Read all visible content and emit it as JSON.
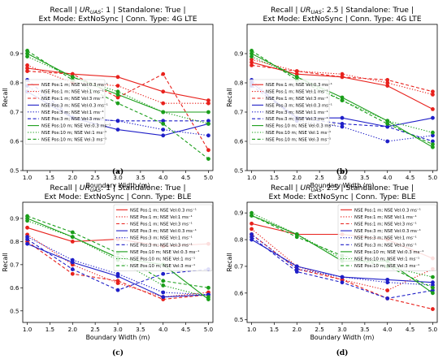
{
  "chart_data": [
    {
      "type": "line",
      "panel_label": "(a)",
      "title_line1_pre": "Recall | ",
      "title_line1_sym": "UR",
      "title_line1_sub": "UAS",
      "title_line1_post": ": 1 | Standalone: True |",
      "title_line2": "Ext Mode: ExtNoSync | Conn. Type: 4G LTE",
      "xlabel": "Boundary  Width (m)",
      "ylabel": "Recall",
      "xlim": [
        0.9,
        5.1
      ],
      "ylim": [
        0.5,
        1.0
      ],
      "x_ticks": [
        "1.0",
        "1.5",
        "2.0",
        "2.5",
        "3.0",
        "3.5",
        "4.0",
        "4.5",
        "5.0"
      ],
      "y_ticks": [
        "0.5",
        "0.6",
        "0.7",
        "0.8",
        "0.9"
      ],
      "legend_position": "center-left",
      "x": [
        1,
        2,
        3,
        4,
        5
      ],
      "series": [
        {
          "name": "NSE Pos:1 m; NSE Vel:0.3 ms⁻¹",
          "color": "#e8211c",
          "dash": "solid",
          "values": [
            0.85,
            0.83,
            0.82,
            0.77,
            0.74
          ]
        },
        {
          "name": "NSE Pos:1 m; NSE Vel:1 ms⁻¹",
          "color": "#e8211c",
          "dash": "dotted",
          "values": [
            0.86,
            0.8,
            0.79,
            0.73,
            0.73
          ]
        },
        {
          "name": "NSE Pos:1 m; NSE Vel:3 ms⁻¹",
          "color": "#e8211c",
          "dash": "dashed",
          "values": [
            0.84,
            0.83,
            0.75,
            0.83,
            0.57
          ]
        },
        {
          "name": "NSE Pos:3 m; NSE Vel:0.3 ms⁻¹",
          "color": "#1f1fc8",
          "dash": "solid",
          "values": [
            0.77,
            0.68,
            0.64,
            0.62,
            0.66
          ]
        },
        {
          "name": "NSE Pos:3 m; NSE Vel:1 ms⁻¹",
          "color": "#1f1fc8",
          "dash": "dotted",
          "values": [
            0.79,
            0.68,
            0.67,
            0.64,
            0.62
          ]
        },
        {
          "name": "NSE Pos:3 m; NSE Vel:3 ms⁻¹",
          "color": "#1f1fc8",
          "dash": "dashed",
          "values": [
            0.81,
            0.68,
            0.67,
            0.67,
            0.67
          ]
        },
        {
          "name": "NSE Pos:10 m; NSE Vel:0.3 ms⁻¹",
          "color": "#1a9e1a",
          "dash": "solid",
          "values": [
            0.9,
            0.82,
            0.76,
            0.7,
            0.7
          ]
        },
        {
          "name": "NSE Pos:10 m; NSE Vel:1 ms⁻¹",
          "color": "#1a9e1a",
          "dash": "dotted",
          "values": [
            0.89,
            0.82,
            0.77,
            0.7,
            0.66
          ]
        },
        {
          "name": "NSE Pos:10 m; NSE Vel:3 ms⁻¹",
          "color": "#1a9e1a",
          "dash": "dashed",
          "values": [
            0.91,
            0.81,
            0.73,
            0.66,
            0.54
          ]
        }
      ]
    },
    {
      "type": "line",
      "panel_label": "(b)",
      "title_line1_pre": "Recall | ",
      "title_line1_sym": "UR",
      "title_line1_sub": "UAS",
      "title_line1_post": ": 2.5 | Standalone: True |",
      "title_line2": "Ext Mode: ExtNoSync | Conn. Type: 4G LTE",
      "xlabel": "Boundary  Width (m)",
      "ylabel": "Recall",
      "xlim": [
        0.9,
        5.1
      ],
      "ylim": [
        0.5,
        1.0
      ],
      "x_ticks": [
        "1.0",
        "1.5",
        "2.0",
        "2.5",
        "3.0",
        "3.5",
        "4.0",
        "4.5",
        "5.0"
      ],
      "y_ticks": [
        "0.5",
        "0.6",
        "0.7",
        "0.8",
        "0.9"
      ],
      "legend_position": "center-left",
      "x": [
        1,
        2,
        3,
        4,
        5
      ],
      "series": [
        {
          "name": "NSE Pos:1 m; NSE Vel:0.3 ms⁻¹",
          "color": "#e8211c",
          "dash": "solid",
          "values": [
            0.87,
            0.83,
            0.82,
            0.79,
            0.71
          ]
        },
        {
          "name": "NSE Pos:1 m; NSE Vel:1 ms⁻¹",
          "color": "#e8211c",
          "dash": "dotted",
          "values": [
            0.88,
            0.84,
            0.83,
            0.8,
            0.76
          ]
        },
        {
          "name": "NSE Pos:1 m; NSE Vel:3 ms⁻¹",
          "color": "#e8211c",
          "dash": "dashed",
          "values": [
            0.86,
            0.84,
            0.82,
            0.81,
            0.77
          ]
        },
        {
          "name": "NSE Pos:3 m; NSE Vel:0.3 ms⁻¹",
          "color": "#1f1fc8",
          "dash": "solid",
          "values": [
            0.8,
            0.68,
            0.68,
            0.65,
            0.68
          ]
        },
        {
          "name": "NSE Pos:3 m; NSE Vel:1 ms⁻¹",
          "color": "#1f1fc8",
          "dash": "dotted",
          "values": [
            0.81,
            0.67,
            0.65,
            0.6,
            0.62
          ]
        },
        {
          "name": "NSE Pos:3 m; NSE Vel:3 ms⁻¹",
          "color": "#1f1fc8",
          "dash": "dashed",
          "values": [
            0.79,
            0.68,
            0.66,
            0.65,
            0.6
          ]
        },
        {
          "name": "NSE Pos:10 m; NSE Vel:0.3 ms⁻¹",
          "color": "#1a9e1a",
          "dash": "solid",
          "values": [
            0.9,
            0.82,
            0.75,
            0.67,
            0.58
          ]
        },
        {
          "name": "NSE Pos:10 m; NSE Vel:1 ms⁻¹",
          "color": "#1a9e1a",
          "dash": "dotted",
          "values": [
            0.89,
            0.82,
            0.74,
            0.67,
            0.63
          ]
        },
        {
          "name": "NSE Pos:10 m; NSE Vel:3 ms⁻¹",
          "color": "#1a9e1a",
          "dash": "dashed",
          "values": [
            0.91,
            0.81,
            0.74,
            0.66,
            0.59
          ]
        }
      ]
    },
    {
      "type": "line",
      "panel_label": "(c)",
      "title_line1_pre": "Recall | ",
      "title_line1_sym": "UR",
      "title_line1_sub": "UAS",
      "title_line1_post": ": 1 | Standalone: True |",
      "title_line2": "Ext Mode: ExtNoSync | Conn. Type: BLE",
      "xlabel": "Boundary  Width (m)",
      "ylabel": "Recall",
      "xlim": [
        0.9,
        5.1
      ],
      "ylim": [
        0.45,
        0.97
      ],
      "x_ticks": [
        "1.0",
        "1.5",
        "2.0",
        "2.5",
        "3.0",
        "3.5",
        "4.0",
        "4.5",
        "5.0"
      ],
      "y_ticks": [
        "0.5",
        "0.6",
        "0.7",
        "0.8",
        "0.9"
      ],
      "legend_position": "top-right",
      "x": [
        1,
        2,
        3,
        4,
        5
      ],
      "series": [
        {
          "name": "NSE Pos:1 m; NSE Vel:0.3 ms⁻¹",
          "color": "#e8211c",
          "dash": "solid",
          "values": [
            0.86,
            0.8,
            0.81,
            0.78,
            0.79
          ]
        },
        {
          "name": "NSE Pos:1 m; NSE Vel:1 ms⁻¹",
          "color": "#e8211c",
          "dash": "dotted",
          "values": [
            0.83,
            0.7,
            0.62,
            0.56,
            0.58
          ]
        },
        {
          "name": "NSE Pos:1 m; NSE Vel:3 ms⁻¹",
          "color": "#e8211c",
          "dash": "dashed",
          "values": [
            0.8,
            0.66,
            0.63,
            0.55,
            0.57
          ]
        },
        {
          "name": "NSE Pos:3 m; NSE Vel:0.3 ms⁻¹",
          "color": "#1f1fc8",
          "dash": "solid",
          "values": [
            0.79,
            0.71,
            0.65,
            0.56,
            0.57
          ]
        },
        {
          "name": "NSE Pos:3 m; NSE Vel:1 ms⁻¹",
          "color": "#1f1fc8",
          "dash": "dotted",
          "values": [
            0.82,
            0.72,
            0.66,
            0.58,
            0.57
          ]
        },
        {
          "name": "NSE Pos:3 m; NSE Vel:3 ms⁻¹",
          "color": "#1f1fc8",
          "dash": "dashed",
          "values": [
            0.81,
            0.68,
            0.59,
            0.66,
            0.68
          ]
        },
        {
          "name": "NSE Pos:10 m; NSE Vel:0.3 ms⁻¹",
          "color": "#1a9e1a",
          "dash": "solid",
          "values": [
            0.9,
            0.82,
            0.73,
            0.7,
            0.55
          ]
        },
        {
          "name": "NSE Pos:10 m; NSE Vel:1 ms⁻¹",
          "color": "#1a9e1a",
          "dash": "dotted",
          "values": [
            0.89,
            0.82,
            0.72,
            0.61,
            0.56
          ]
        },
        {
          "name": "NSE Pos:10 m; NSE Vel:3 ms⁻¹",
          "color": "#1a9e1a",
          "dash": "dashed",
          "values": [
            0.91,
            0.84,
            0.75,
            0.63,
            0.6
          ]
        }
      ]
    },
    {
      "type": "line",
      "panel_label": "(d)",
      "title_line1_pre": "Recall | ",
      "title_line1_sym": "UR",
      "title_line1_sub": "UAS",
      "title_line1_post": ": 2.5 | Standalone: True |",
      "title_line2": "Ext Mode: ExtNoSync | Conn. Type: BLE",
      "xlabel": "Boundary  Width (m)",
      "ylabel": "Recall",
      "xlim": [
        0.9,
        5.1
      ],
      "ylim": [
        0.49,
        0.94
      ],
      "x_ticks": [
        "1.0",
        "1.5",
        "2.0",
        "2.5",
        "3.0",
        "3.5",
        "4.0",
        "4.5",
        "5.0"
      ],
      "y_ticks": [
        "0.5",
        "0.6",
        "0.7",
        "0.8",
        "0.9"
      ],
      "legend_position": "top-right",
      "x": [
        1,
        2,
        3,
        4,
        5
      ],
      "series": [
        {
          "name": "NSE Pos:1 m; NSE Vel:0.3 ms⁻¹",
          "color": "#e8211c",
          "dash": "solid",
          "values": [
            0.86,
            0.82,
            0.82,
            0.8,
            0.73
          ]
        },
        {
          "name": "NSE Pos:1 m; NSE Vel:1 ms⁻¹",
          "color": "#e8211c",
          "dash": "dotted",
          "values": [
            0.84,
            0.7,
            0.65,
            0.61,
            0.69
          ]
        },
        {
          "name": "NSE Pos:1 m; NSE Vel:3 ms⁻¹",
          "color": "#e8211c",
          "dash": "dashed",
          "values": [
            0.82,
            0.69,
            0.65,
            0.58,
            0.54
          ]
        },
        {
          "name": "NSE Pos:3 m; NSE Vel:0.3 ms⁻¹",
          "color": "#1f1fc8",
          "dash": "solid",
          "values": [
            0.8,
            0.7,
            0.66,
            0.65,
            0.64
          ]
        },
        {
          "name": "NSE Pos:3 m; NSE Vel:1 ms⁻¹",
          "color": "#1f1fc8",
          "dash": "dotted",
          "values": [
            0.82,
            0.69,
            0.66,
            0.64,
            0.63
          ]
        },
        {
          "name": "NSE Pos:3 m; NSE Vel:3 ms⁻¹",
          "color": "#1f1fc8",
          "dash": "dashed",
          "values": [
            0.81,
            0.68,
            0.64,
            0.58,
            0.61
          ]
        },
        {
          "name": "NSE Pos:10 m; NSE Vel:0.3 ms⁻¹",
          "color": "#1a9e1a",
          "dash": "solid",
          "values": [
            0.89,
            0.82,
            0.72,
            0.72,
            0.6
          ]
        },
        {
          "name": "NSE Pos:10 m; NSE Vel:1 ms⁻¹",
          "color": "#1a9e1a",
          "dash": "dotted",
          "values": [
            0.9,
            0.82,
            0.73,
            0.7,
            0.66
          ]
        },
        {
          "name": "NSE Pos:10 m; NSE Vel:3 ms⁻¹",
          "color": "#1a9e1a",
          "dash": "dashed",
          "values": [
            0.89,
            0.81,
            0.74,
            0.7,
            0.62
          ]
        }
      ]
    }
  ]
}
